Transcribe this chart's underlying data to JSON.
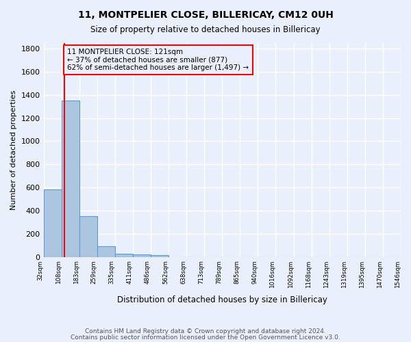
{
  "title": "11, MONTPELIER CLOSE, BILLERICAY, CM12 0UH",
  "subtitle": "Size of property relative to detached houses in Billericay",
  "xlabel": "Distribution of detached houses by size in Billericay",
  "ylabel": "Number of detached properties",
  "footnote1": "Contains HM Land Registry data © Crown copyright and database right 2024.",
  "footnote2": "Contains public sector information licensed under the Open Government Licence v3.0.",
  "bin_labels": [
    "32sqm",
    "108sqm",
    "183sqm",
    "259sqm",
    "335sqm",
    "411sqm",
    "486sqm",
    "562sqm",
    "638sqm",
    "713sqm",
    "789sqm",
    "865sqm",
    "940sqm",
    "1016sqm",
    "1092sqm",
    "1168sqm",
    "1243sqm",
    "1319sqm",
    "1395sqm",
    "1470sqm",
    "1546sqm"
  ],
  "bar_heights": [
    580,
    1350,
    350,
    95,
    30,
    20,
    15,
    0,
    0,
    0,
    0,
    0,
    0,
    0,
    0,
    0,
    0,
    0,
    0,
    0
  ],
  "bar_color": "#adc6e0",
  "bar_edge_color": "#5b9bd5",
  "property_line_x": 1.18,
  "property_line_color": "red",
  "annotation_text": "11 MONTPELIER CLOSE: 121sqm\n← 37% of detached houses are smaller (877)\n62% of semi-detached houses are larger (1,497) →",
  "annotation_box_color": "red",
  "ylim": [
    0,
    1850
  ],
  "yticks": [
    0,
    200,
    400,
    600,
    800,
    1000,
    1200,
    1400,
    1600,
    1800
  ],
  "background_color": "#eaf0fb",
  "grid_color": "white"
}
